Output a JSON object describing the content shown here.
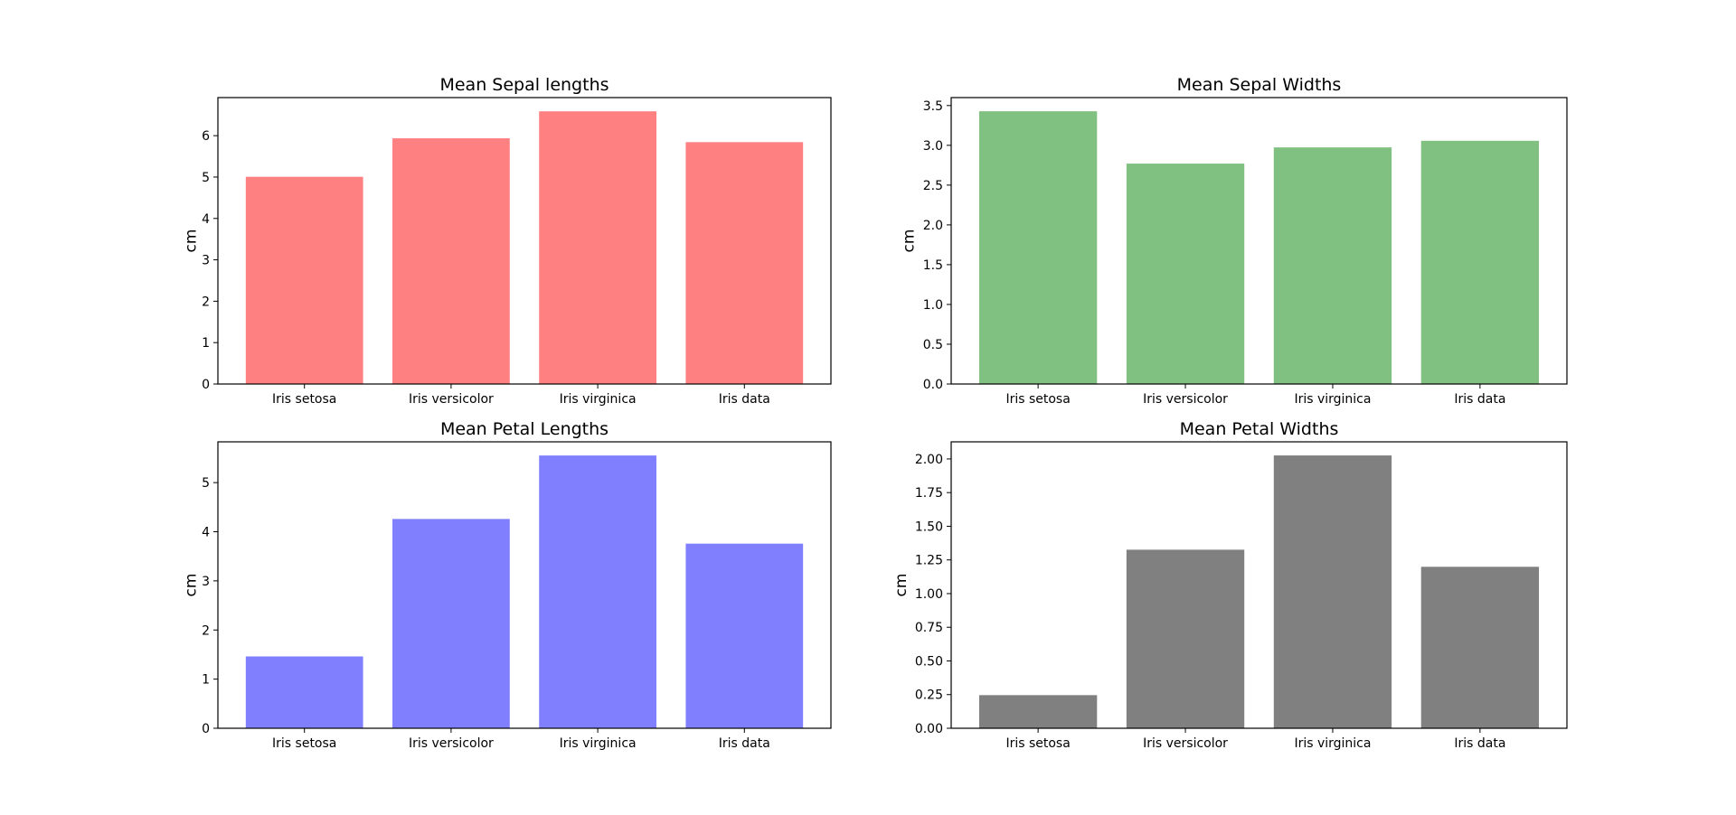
{
  "chart_data": [
    {
      "type": "bar",
      "title": "Mean Sepal lengths",
      "xlabel": "",
      "ylabel": "cm",
      "categories": [
        "Iris setosa",
        "Iris versicolor",
        "Iris virginica",
        "Iris data"
      ],
      "values": [
        5.006,
        5.936,
        6.588,
        5.843
      ],
      "ylim": [
        0,
        6.92
      ],
      "yticks": [
        0,
        1,
        2,
        3,
        4,
        5,
        6
      ],
      "ytick_labels": [
        "0",
        "1",
        "2",
        "3",
        "4",
        "5",
        "6"
      ],
      "color": "#ff8080",
      "grid": false
    },
    {
      "type": "bar",
      "title": "Mean Sepal Widths",
      "xlabel": "",
      "ylabel": "cm",
      "categories": [
        "Iris setosa",
        "Iris versicolor",
        "Iris virginica",
        "Iris data"
      ],
      "values": [
        3.428,
        2.77,
        2.974,
        3.057
      ],
      "ylim": [
        0,
        3.6
      ],
      "yticks": [
        0,
        0.5,
        1,
        1.5,
        2,
        2.5,
        3,
        3.5
      ],
      "ytick_labels": [
        "0.0",
        "0.5",
        "1.0",
        "1.5",
        "2.0",
        "2.5",
        "3.0",
        "3.5"
      ],
      "color": "#80c080",
      "grid": false
    },
    {
      "type": "bar",
      "title": "Mean Petal Lengths",
      "xlabel": "",
      "ylabel": "cm",
      "categories": [
        "Iris setosa",
        "Iris versicolor",
        "Iris virginica",
        "Iris data"
      ],
      "values": [
        1.462,
        4.26,
        5.552,
        3.758
      ],
      "ylim": [
        0,
        5.83
      ],
      "yticks": [
        0,
        1,
        2,
        3,
        4,
        5
      ],
      "ytick_labels": [
        "0",
        "1",
        "2",
        "3",
        "4",
        "5"
      ],
      "color": "#8080ff",
      "grid": false
    },
    {
      "type": "bar",
      "title": "Mean Petal Widths",
      "xlabel": "",
      "ylabel": "cm",
      "categories": [
        "Iris setosa",
        "Iris versicolor",
        "Iris virginica",
        "Iris data"
      ],
      "values": [
        0.246,
        1.326,
        2.026,
        1.199
      ],
      "ylim": [
        0,
        2.127
      ],
      "yticks": [
        0,
        0.25,
        0.5,
        0.75,
        1,
        1.25,
        1.5,
        1.75,
        2
      ],
      "ytick_labels": [
        "0.00",
        "0.25",
        "0.50",
        "0.75",
        "1.00",
        "1.25",
        "1.50",
        "1.75",
        "2.00"
      ],
      "color": "#808080",
      "grid": false
    }
  ]
}
